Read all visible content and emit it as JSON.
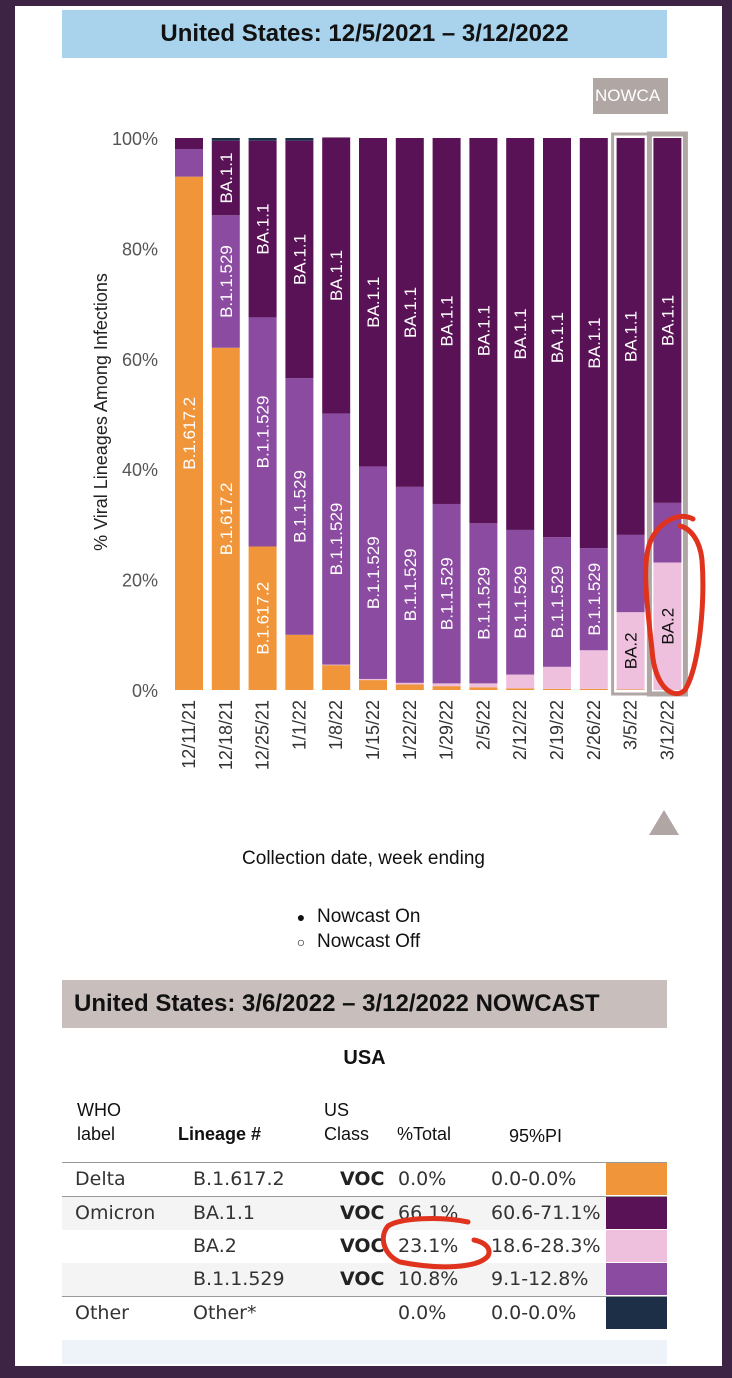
{
  "title": "United States: 12/5/2021 – 3/12/2022",
  "nowcast_tab": "NOWCA",
  "chart_data": {
    "type": "bar",
    "stacked": true,
    "ylabel": "% Viral Lineages Among Infections",
    "xlabel": "Collection date, week ending",
    "ylim": [
      0,
      100
    ],
    "yticks": [
      "0%",
      "20%",
      "40%",
      "60%",
      "80%",
      "100%"
    ],
    "categories": [
      "12/11/21",
      "12/18/21",
      "12/25/21",
      "1/1/22",
      "1/8/22",
      "1/15/22",
      "1/22/22",
      "1/29/22",
      "2/5/22",
      "2/12/22",
      "2/19/22",
      "2/26/22",
      "3/5/22",
      "3/12/22"
    ],
    "series": [
      {
        "name": "B.1.617.2",
        "color": "#f0953a",
        "values": [
          93.0,
          62.0,
          26.0,
          10.0,
          4.5,
          1.8,
          1.0,
          0.7,
          0.5,
          0.3,
          0.2,
          0.2,
          0.1,
          0.0
        ]
      },
      {
        "name": "BA.2",
        "color": "#eec0dd",
        "values": [
          0.0,
          0.0,
          0.0,
          0.0,
          0.1,
          0.2,
          0.3,
          0.5,
          0.7,
          2.5,
          4.0,
          7.0,
          14.0,
          23.1
        ]
      },
      {
        "name": "B.1.1.529",
        "color": "#8b4ba0",
        "values": [
          5.0,
          24.0,
          41.5,
          46.5,
          45.5,
          38.5,
          35.5,
          32.5,
          29.0,
          26.2,
          23.5,
          18.5,
          14.0,
          10.8
        ]
      },
      {
        "name": "BA.1.1",
        "color": "#5a1257",
        "values": [
          2.0,
          13.5,
          32.0,
          43.0,
          50.0,
          59.5,
          63.2,
          66.3,
          69.8,
          71.0,
          72.3,
          74.3,
          71.9,
          66.1
        ]
      },
      {
        "name": "Other",
        "color": "#1d2f47",
        "values": [
          0.0,
          0.5,
          0.5,
          0.5,
          0.0,
          0.0,
          0.0,
          0.0,
          0.0,
          0.0,
          0.0,
          0.0,
          0.0,
          0.0
        ]
      }
    ],
    "bar_labels": [
      {
        "category": "12/11/21",
        "series": "B.1.617.2",
        "text": "B.1.617.2"
      },
      {
        "category": "12/18/21",
        "series": "B.1.617.2",
        "text": "B.1.617.2"
      },
      {
        "category": "12/18/21",
        "series": "B.1.1.529",
        "text": "B.1.1.529"
      },
      {
        "category": "12/18/21",
        "series": "BA.1.1",
        "text": "BA.1.1"
      },
      {
        "category": "12/25/21",
        "series": "B.1.617.2",
        "text": "B.1.617.2"
      },
      {
        "category": "12/25/21",
        "series": "B.1.1.529",
        "text": "B.1.1.529"
      },
      {
        "category": "12/25/21",
        "series": "BA.1.1",
        "text": "BA.1.1"
      },
      {
        "category": "1/1/22",
        "series": "B.1.1.529",
        "text": "B.1.1.529"
      },
      {
        "category": "1/1/22",
        "series": "BA.1.1",
        "text": "BA.1.1"
      },
      {
        "category": "1/8/22",
        "series": "B.1.1.529",
        "text": "B.1.1.529"
      },
      {
        "category": "1/8/22",
        "series": "BA.1.1",
        "text": "BA.1.1"
      },
      {
        "category": "1/15/22",
        "series": "B.1.1.529",
        "text": "B.1.1.529"
      },
      {
        "category": "1/15/22",
        "series": "BA.1.1",
        "text": "BA.1.1"
      },
      {
        "category": "1/22/22",
        "series": "B.1.1.529",
        "text": "B.1.1.529"
      },
      {
        "category": "1/22/22",
        "series": "BA.1.1",
        "text": "BA.1.1"
      },
      {
        "category": "1/29/22",
        "series": "B.1.1.529",
        "text": "B.1.1.529"
      },
      {
        "category": "1/29/22",
        "series": "BA.1.1",
        "text": "BA.1.1"
      },
      {
        "category": "2/5/22",
        "series": "B.1.1.529",
        "text": "B.1.1.529"
      },
      {
        "category": "2/5/22",
        "series": "BA.1.1",
        "text": "BA.1.1"
      },
      {
        "category": "2/12/22",
        "series": "B.1.1.529",
        "text": "B.1.1.529"
      },
      {
        "category": "2/12/22",
        "series": "BA.1.1",
        "text": "BA.1.1"
      },
      {
        "category": "2/19/22",
        "series": "B.1.1.529",
        "text": "B.1.1.529"
      },
      {
        "category": "2/19/22",
        "series": "BA.1.1",
        "text": "BA.1.1"
      },
      {
        "category": "2/26/22",
        "series": "B.1.1.529",
        "text": "B.1.1.529"
      },
      {
        "category": "2/26/22",
        "series": "BA.1.1",
        "text": "BA.1.1"
      },
      {
        "category": "3/5/22",
        "series": "BA.2",
        "text": "BA.2"
      },
      {
        "category": "3/5/22",
        "series": "BA.1.1",
        "text": "BA.1.1"
      },
      {
        "category": "3/12/22",
        "series": "BA.2",
        "text": "BA.2"
      },
      {
        "category": "3/12/22",
        "series": "BA.1.1",
        "text": "BA.1.1"
      }
    ],
    "nowcast_categories": [
      "3/5/22",
      "3/12/22"
    ],
    "selected_category": "3/12/22",
    "grid": false
  },
  "nowcast_options": [
    {
      "symbol": "●",
      "label": "Nowcast On"
    },
    {
      "symbol": "○",
      "label": "Nowcast Off"
    }
  ],
  "table": {
    "header": "United States: 3/6/2022 – 3/12/2022 NOWCAST",
    "region": "USA",
    "columns": {
      "who": [
        "WHO",
        "label"
      ],
      "lineage": "Lineage #",
      "us_class": [
        "US",
        "Class"
      ],
      "total": "%Total",
      "pi": "95%PI"
    },
    "rows": [
      {
        "who": "Delta",
        "lineage": "B.1.617.2",
        "class": "VOC",
        "total": "0.0%",
        "pi": "0.0-0.0%",
        "color": "#f0953a"
      },
      {
        "who": "Omicron",
        "lineage": "BA.1.1",
        "class": "VOC",
        "total": "66.1%",
        "pi": "60.6-71.1%",
        "color": "#5a1257"
      },
      {
        "who": "",
        "lineage": "BA.2",
        "class": "VOC",
        "total": "23.1%",
        "pi": "18.6-28.3%",
        "color": "#eec0dd"
      },
      {
        "who": "",
        "lineage": "B.1.1.529",
        "class": "VOC",
        "total": "10.8%",
        "pi": "9.1-12.8%",
        "color": "#8b4ba0"
      },
      {
        "who": "Other",
        "lineage": "Other*",
        "class": "",
        "total": "0.0%",
        "pi": "0.0-0.0%",
        "color": "#1d2f47"
      }
    ]
  },
  "colors": {
    "annotation": "#e0331e",
    "nowcast_bg": "#b0a6a4",
    "title_bg": "#a9d3ec",
    "table_header_bg": "#c8bfbd"
  }
}
